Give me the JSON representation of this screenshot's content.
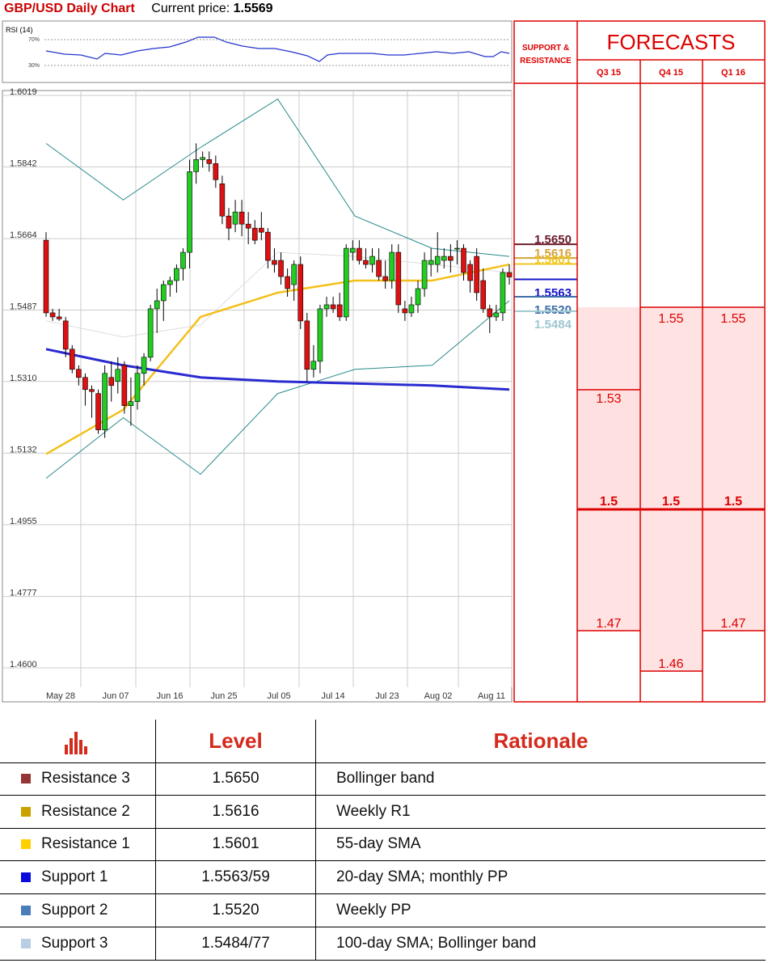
{
  "header": {
    "title": "GBP/USD Daily Chart",
    "price_label": "Current price:",
    "price": "1.5569"
  },
  "chart_data": {
    "type": "candlestick",
    "y_ticks": [
      "1.6019",
      "1.5842",
      "1.5664",
      "1.5487",
      "1.5310",
      "1.5132",
      "1.4955",
      "1.4777",
      "1.4600"
    ],
    "ylim": [
      1.46,
      1.6019
    ],
    "x_ticks": [
      "May 28",
      "Jun 07",
      "Jun 16",
      "Jun 25",
      "Jul 05",
      "Jul 14",
      "Jul 23",
      "Aug 02",
      "Aug 11"
    ],
    "candles": [
      [
        1.566,
        1.568,
        1.547,
        1.548
      ],
      [
        1.548,
        1.549,
        1.546,
        1.547
      ],
      [
        1.547,
        1.549,
        1.546,
        1.5465
      ],
      [
        1.546,
        1.547,
        1.537,
        1.539
      ],
      [
        1.539,
        1.54,
        1.533,
        1.534
      ],
      [
        1.534,
        1.535,
        1.53,
        1.532
      ],
      [
        1.532,
        1.533,
        1.525,
        1.529
      ],
      [
        1.529,
        1.53,
        1.522,
        1.5285
      ],
      [
        1.528,
        1.529,
        1.518,
        1.519
      ],
      [
        1.519,
        1.535,
        1.517,
        1.533
      ],
      [
        1.532,
        1.536,
        1.526,
        1.53
      ],
      [
        1.531,
        1.537,
        1.528,
        1.534
      ],
      [
        1.535,
        1.536,
        1.523,
        1.525
      ],
      [
        1.525,
        1.532,
        1.52,
        1.526
      ],
      [
        1.526,
        1.535,
        1.524,
        1.533
      ],
      [
        1.533,
        1.538,
        1.53,
        1.537
      ],
      [
        1.537,
        1.55,
        1.536,
        1.549
      ],
      [
        1.549,
        1.554,
        1.543,
        1.551
      ],
      [
        1.551,
        1.556,
        1.546,
        1.555
      ],
      [
        1.555,
        1.557,
        1.552,
        1.556
      ],
      [
        1.556,
        1.56,
        1.553,
        1.559
      ],
      [
        1.559,
        1.564,
        1.556,
        1.563
      ],
      [
        1.563,
        1.586,
        1.559,
        1.583
      ],
      [
        1.583,
        1.59,
        1.58,
        1.586
      ],
      [
        1.586,
        1.588,
        1.584,
        1.5865
      ],
      [
        1.586,
        1.588,
        1.583,
        1.585
      ],
      [
        1.585,
        1.587,
        1.579,
        1.581
      ],
      [
        1.58,
        1.582,
        1.57,
        1.572
      ],
      [
        1.572,
        1.574,
        1.566,
        1.569
      ],
      [
        1.57,
        1.576,
        1.568,
        1.573
      ],
      [
        1.573,
        1.576,
        1.567,
        1.57
      ],
      [
        1.57,
        1.573,
        1.565,
        1.569
      ],
      [
        1.569,
        1.571,
        1.565,
        1.566
      ],
      [
        1.569,
        1.573,
        1.566,
        1.568
      ],
      [
        1.568,
        1.569,
        1.559,
        1.561
      ],
      [
        1.561,
        1.564,
        1.558,
        1.56
      ],
      [
        1.561,
        1.563,
        1.555,
        1.557
      ],
      [
        1.557,
        1.559,
        1.552,
        1.554
      ],
      [
        1.555,
        1.561,
        1.551,
        1.56
      ],
      [
        1.56,
        1.562,
        1.544,
        1.546
      ],
      [
        1.546,
        1.548,
        1.531,
        1.534
      ],
      [
        1.534,
        1.54,
        1.532,
        1.536
      ],
      [
        1.536,
        1.55,
        1.533,
        1.549
      ],
      [
        1.549,
        1.552,
        1.547,
        1.55
      ],
      [
        1.55,
        1.552,
        1.548,
        1.549
      ],
      [
        1.55,
        1.553,
        1.546,
        1.547
      ],
      [
        1.547,
        1.565,
        1.546,
        1.564
      ],
      [
        1.563,
        1.566,
        1.561,
        1.564
      ],
      [
        1.564,
        1.566,
        1.56,
        1.561
      ],
      [
        1.561,
        1.564,
        1.559,
        1.56
      ],
      [
        1.56,
        1.564,
        1.558,
        1.562
      ],
      [
        1.561,
        1.564,
        1.556,
        1.557
      ],
      [
        1.557,
        1.561,
        1.554,
        1.556
      ],
      [
        1.556,
        1.565,
        1.554,
        1.563
      ],
      [
        1.563,
        1.565,
        1.548,
        1.55
      ],
      [
        1.549,
        1.551,
        1.546,
        1.548
      ],
      [
        1.548,
        1.552,
        1.547,
        1.55
      ],
      [
        1.55,
        1.556,
        1.548,
        1.554
      ],
      [
        1.554,
        1.563,
        1.552,
        1.561
      ],
      [
        1.56,
        1.564,
        1.557,
        1.561
      ],
      [
        1.56,
        1.568,
        1.558,
        1.562
      ],
      [
        1.561,
        1.564,
        1.559,
        1.562
      ],
      [
        1.562,
        1.565,
        1.558,
        1.561
      ],
      [
        1.564,
        1.566,
        1.56,
        1.564
      ],
      [
        1.564,
        1.565,
        1.556,
        1.558
      ],
      [
        1.56,
        1.561,
        1.553,
        1.556
      ],
      [
        1.562,
        1.564,
        1.551,
        1.553
      ],
      [
        1.556,
        1.559,
        1.548,
        1.549
      ],
      [
        1.549,
        1.55,
        1.543,
        1.547
      ],
      [
        1.547,
        1.55,
        1.546,
        1.548
      ],
      [
        1.548,
        1.559,
        1.546,
        1.558
      ],
      [
        1.558,
        1.56,
        1.555,
        1.5569
      ]
    ],
    "sma100": [
      1.539,
      1.535,
      1.532,
      1.531,
      1.5305,
      1.53,
      1.529
    ],
    "sma55": [
      1.513,
      1.524,
      1.547,
      1.553,
      1.556,
      1.556,
      1.56
    ],
    "bb_upper": [
      1.59,
      1.576,
      1.589,
      1.601,
      1.572,
      1.564,
      1.562
    ],
    "bb_mid": [
      1.546,
      1.542,
      1.545,
      1.563,
      1.562,
      1.56,
      1.558
    ],
    "bb_lower": [
      1.507,
      1.522,
      1.508,
      1.528,
      1.534,
      1.535,
      1.551
    ],
    "rsi": {
      "label": "RSI (14)",
      "ticks": [
        "70%",
        "30%"
      ]
    }
  },
  "levels": [
    {
      "value": "1.5650",
      "color": "#6b1b2b"
    },
    {
      "value": "1.5616",
      "color": "#d4a23a"
    },
    {
      "value": "1.5601",
      "color": "#f0c820"
    },
    {
      "value": "1.5563",
      "color": "#1515c8"
    },
    {
      "value": "1.5520",
      "color": "#3c6ea8"
    },
    {
      "value": "1.5484",
      "color": "#9ec7d0"
    }
  ],
  "sr_header": "SUPPORT & RESISTANCE",
  "forecasts": {
    "title": "FORECASTS",
    "columns": [
      {
        "label": "Q3 15",
        "values": [
          "1.53",
          "1.5",
          "1.47"
        ],
        "bold": "1.5"
      },
      {
        "label": "Q4 15",
        "values": [
          "1.55",
          "1.5",
          "1.46"
        ],
        "bold": "1.5"
      },
      {
        "label": "Q1 16",
        "values": [
          "1.55",
          "1.5",
          "1.47"
        ],
        "bold": "1.5"
      }
    ]
  },
  "table": {
    "headers": {
      "level": "Level",
      "rationale": "Rationale"
    },
    "rows": [
      {
        "name": "Resistance 3",
        "color": "#943634",
        "level": "1.5650",
        "rationale": "Bollinger band"
      },
      {
        "name": "Resistance 2",
        "color": "#c9a100",
        "level": "1.5616",
        "rationale": "Weekly R1"
      },
      {
        "name": "Resistance 1",
        "color": "#ffd000",
        "level": "1.5601",
        "rationale": "55-day SMA"
      },
      {
        "name": "Support 1",
        "color": "#0a0adc",
        "level": "1.5563/59",
        "rationale": "20-day SMA; monthly PP"
      },
      {
        "name": "Support 2",
        "color": "#4a7ebb",
        "level": "1.5520",
        "rationale": "Weekly PP"
      },
      {
        "name": "Support 3",
        "color": "#b9cde5",
        "level": "1.5484/77",
        "rationale": "100-day SMA; Bollinger band"
      }
    ]
  }
}
